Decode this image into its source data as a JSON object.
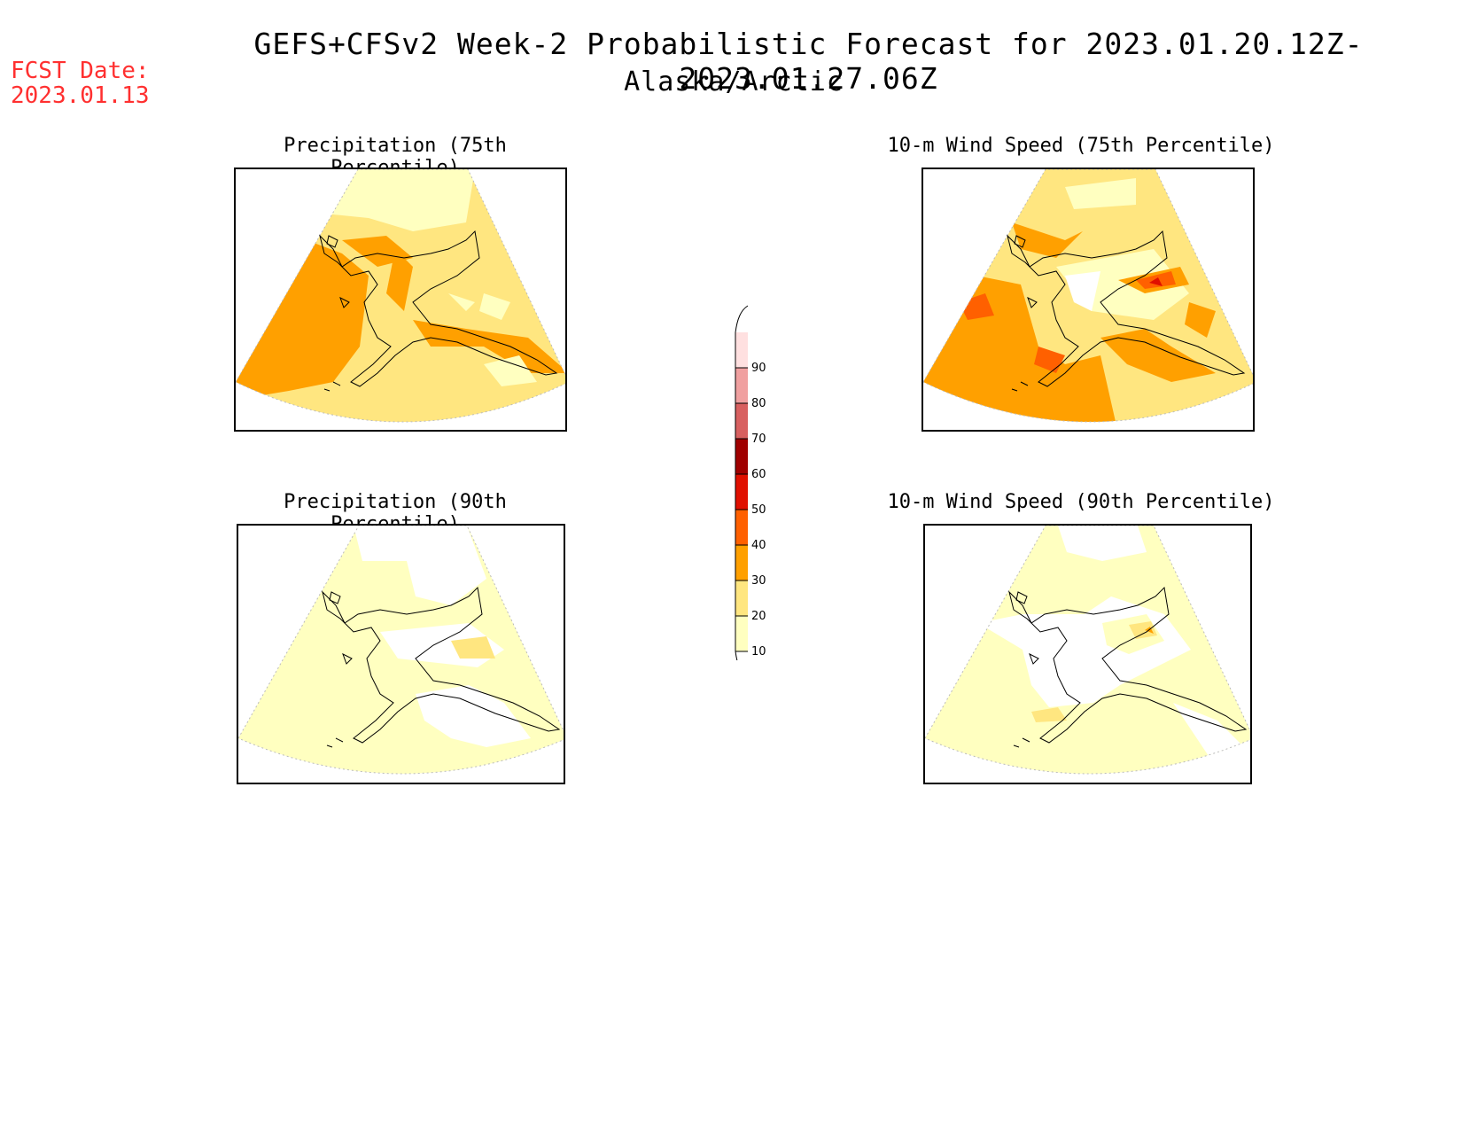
{
  "header": {
    "title": "GEFS+CFSv2 Week-2 Probabilistic Forecast for 2023.01.20.12Z-2023.01.27.06Z",
    "subtitle": "Alaska/Arctic",
    "fcst_label": "FCST Date:",
    "fcst_date": "2023.01.13"
  },
  "panels": [
    {
      "id": "precip75",
      "title": "Precipitation (75th Percentile)"
    },
    {
      "id": "wind75",
      "title": "10-m Wind Speed (75th Percentile)"
    },
    {
      "id": "precip90",
      "title": "Precipitation (90th Percentile)"
    },
    {
      "id": "wind90",
      "title": "10-m Wind Speed (90th Percentile)"
    }
  ],
  "colorbar": {
    "ticks": [
      "10",
      "20",
      "30",
      "40",
      "50",
      "60",
      "70",
      "80",
      "90"
    ],
    "colors": [
      "#ffffc0",
      "#ffe680",
      "#ffa000",
      "#ff6000",
      "#e01000",
      "#a00000",
      "#d86060",
      "#f0a0a0",
      "#ffe0e0"
    ]
  }
}
